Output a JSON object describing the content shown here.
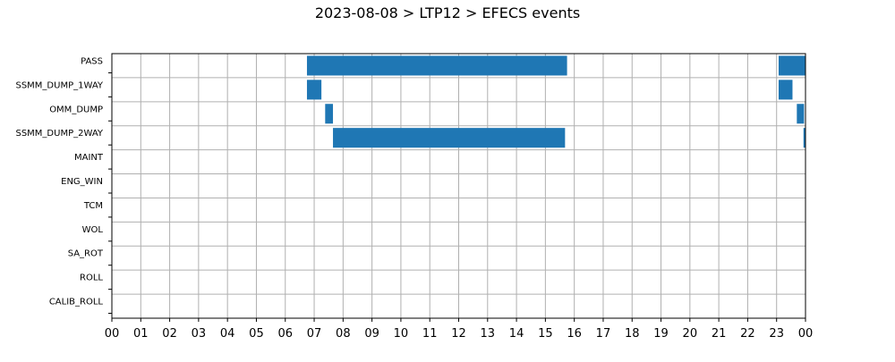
{
  "chart_data": {
    "type": "bar",
    "orientation": "horizontal-timeline",
    "title": "2023-08-08 > LTP12 > EFECS events",
    "xlabel": "",
    "ylabel": "",
    "xlim": [
      0,
      24
    ],
    "x_tick_labels": [
      "00",
      "01",
      "02",
      "03",
      "04",
      "05",
      "06",
      "07",
      "08",
      "09",
      "10",
      "11",
      "12",
      "13",
      "14",
      "15",
      "16",
      "17",
      "18",
      "19",
      "20",
      "21",
      "22",
      "23",
      "00"
    ],
    "categories": [
      "PASS",
      "SSMM_DUMP_1WAY",
      "OMM_DUMP",
      "SSMM_DUMP_2WAY",
      "MAINT",
      "ENG_WIN",
      "TCM",
      "WOL",
      "SA_ROT",
      "ROLL",
      "CALIB_ROLL"
    ],
    "grid": true,
    "bar_color": "#1f77b4",
    "events": [
      {
        "category": "PASS",
        "start": 6.75,
        "end": 15.75
      },
      {
        "category": "PASS",
        "start": 23.07,
        "end": 24.0
      },
      {
        "category": "SSMM_DUMP_1WAY",
        "start": 6.75,
        "end": 7.25
      },
      {
        "category": "SSMM_DUMP_1WAY",
        "start": 23.07,
        "end": 23.55
      },
      {
        "category": "OMM_DUMP",
        "start": 7.38,
        "end": 7.65
      },
      {
        "category": "OMM_DUMP",
        "start": 23.7,
        "end": 23.95
      },
      {
        "category": "SSMM_DUMP_2WAY",
        "start": 7.65,
        "end": 15.68
      },
      {
        "category": "SSMM_DUMP_2WAY",
        "start": 23.93,
        "end": 24.0
      }
    ]
  }
}
